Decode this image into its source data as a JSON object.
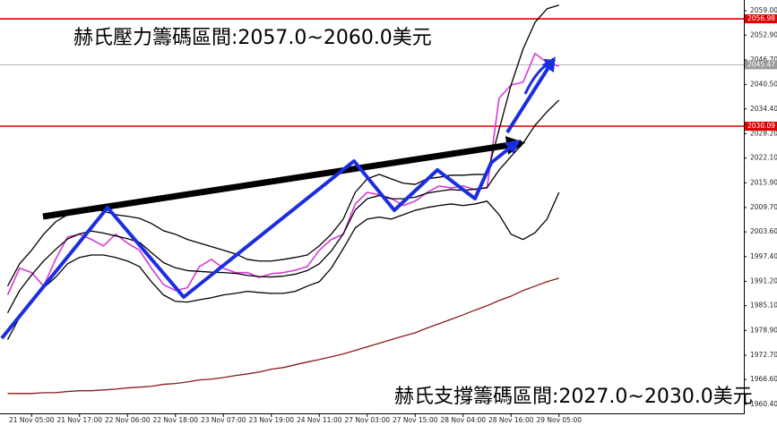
{
  "chart_data": {
    "type": "line",
    "annotations": [
      "赫氏壓力籌碼區間:2057.0~2060.0美元",
      "赫氏支撐籌碼區間:2027.0~2030.0美元"
    ],
    "categories": [
      null,
      null,
      "21 Nov 05:00",
      null,
      null,
      null,
      "21 Nov 17:00",
      null,
      null,
      null,
      "22 Nov 06:00",
      null,
      null,
      null,
      "22 Nov 18:00",
      null,
      null,
      null,
      "23 Nov 07:00",
      null,
      null,
      null,
      "23 Nov 19:00",
      null,
      null,
      null,
      "24 Nov 11:00",
      null,
      null,
      null,
      "27 Nov 03:00",
      null,
      null,
      null,
      "27 Nov 15:00",
      null,
      null,
      null,
      "28 Nov 04:00",
      null,
      null,
      null,
      "28 Nov 16:00",
      null,
      null,
      null,
      "29 Nov 05:00"
    ],
    "series": [
      {
        "color": "#d63ad6",
        "values": [
          1987.8,
          1994.5,
          1993.4,
          1990.0,
          1996.7,
          2002.3,
          2003.0,
          2001.7,
          2000.1,
          2003.0,
          2000.8,
          1999.0,
          1994.5,
          1990.4,
          1988.9,
          1989.6,
          1994.9,
          1996.7,
          1994.5,
          1993.4,
          1993.4,
          1992.2,
          1993.1,
          1993.4,
          1994.0,
          1994.9,
          1999.0,
          2001.7,
          2003.0,
          2010.6,
          2013.5,
          2012.9,
          2012.0,
          2010.2,
          2011.3,
          2013.5,
          2015.1,
          2014.6,
          2015.1,
          2014.2,
          2014.6,
          2037.1,
          2040.4,
          2041.1,
          2048.3,
          2046.0,
          2045.1
        ]
      },
      {
        "color": "#000000",
        "values": [
          1990.0,
          1995.6,
          1999.0,
          2003.0,
          2006.1,
          2007.9,
          2009.0,
          2009.7,
          2008.8,
          2007.9,
          2007.5,
          2007.0,
          2005.7,
          2003.9,
          2003.0,
          2001.7,
          2000.8,
          1999.9,
          1999.0,
          1998.1,
          1996.7,
          1996.3,
          1996.3,
          1996.7,
          1997.2,
          1997.8,
          2000.1,
          2003.0,
          2006.8,
          2013.5,
          2016.9,
          2018.0,
          2016.9,
          2015.8,
          2015.5,
          2016.9,
          2017.3,
          2017.8,
          2017.8,
          2018.0,
          2018.0,
          2029.2,
          2040.4,
          2049.4,
          2056.1,
          2059.5,
          2060.4
        ]
      },
      {
        "color": "#000000",
        "values": [
          1976.6,
          1982.2,
          1986.6,
          1989.6,
          1992.2,
          1995.6,
          1997.2,
          1997.8,
          1997.8,
          1997.2,
          1996.3,
          1994.9,
          1991.1,
          1987.8,
          1986.2,
          1986.0,
          1986.6,
          1987.1,
          1987.8,
          1988.2,
          1988.7,
          1988.4,
          1988.2,
          1988.2,
          1988.7,
          1990.0,
          1991.1,
          1994.5,
          1999.4,
          2004.6,
          2006.8,
          2007.3,
          2006.8,
          2007.9,
          2009.0,
          2009.7,
          2010.2,
          2010.6,
          2010.2,
          2010.6,
          2011.3,
          2007.9,
          2003.0,
          2001.7,
          2003.4,
          2006.8,
          2013.5
        ]
      },
      {
        "color": "#000000",
        "values": [
          1983.3,
          1988.9,
          1992.8,
          1996.3,
          1999.2,
          2001.8,
          2003.1,
          2003.8,
          2003.3,
          2002.6,
          2001.9,
          2001.0,
          1998.4,
          1995.9,
          1994.6,
          1993.9,
          1993.7,
          1993.5,
          1993.4,
          1993.2,
          1992.7,
          1992.4,
          1992.3,
          1992.5,
          1993.0,
          1993.9,
          1995.6,
          1998.8,
          2003.1,
          2009.1,
          2011.9,
          2012.7,
          2011.9,
          2011.9,
          2012.3,
          2013.3,
          2013.8,
          2014.2,
          2014.0,
          2014.3,
          2014.7,
          2019.1,
          2022.5,
          2025.8,
          2030.3,
          2033.7,
          2036.6
        ]
      },
      {
        "color": "#8b1a1a",
        "values": [
          1963.1,
          1963.1,
          1963.1,
          1963.3,
          1963.3,
          1963.6,
          1963.8,
          1963.8,
          1964.0,
          1964.2,
          1964.5,
          1964.7,
          1964.9,
          1965.4,
          1965.6,
          1966.0,
          1966.5,
          1966.7,
          1967.1,
          1967.6,
          1968.0,
          1968.5,
          1969.2,
          1969.6,
          1970.3,
          1971.0,
          1971.6,
          1972.3,
          1973.0,
          1973.9,
          1974.8,
          1975.7,
          1976.6,
          1977.5,
          1978.3,
          1979.5,
          1980.6,
          1981.7,
          1982.8,
          1984.0,
          1985.1,
          1986.4,
          1987.5,
          1988.9,
          1990.0,
          1991.1,
          1992.0
        ]
      }
    ],
    "levels": [
      {
        "value": 2056.98,
        "color": "#e00000"
      },
      {
        "value": 2030.09,
        "color": "#e00000"
      }
    ],
    "current_price": {
      "value": 2045.47,
      "color": "#9a9a9a"
    },
    "ylim": [
      1957.9,
      2061.7
    ],
    "yticks": [
      {
        "value": 2059.0,
        "label": "2059.00"
      },
      {
        "value": 2052.9,
        "label": "2052.90"
      },
      {
        "value": 2046.7,
        "label": "2046.70"
      },
      {
        "value": 2040.5,
        "label": "2040.50"
      },
      {
        "value": 2034.4,
        "label": "2034.40"
      },
      {
        "value": 2028.2,
        "label": "2028.20"
      },
      {
        "value": 2022.1,
        "label": "2022.10"
      },
      {
        "value": 2015.9,
        "label": "2015.90"
      },
      {
        "value": 2009.7,
        "label": "2009.70"
      },
      {
        "value": 2003.6,
        "label": "2003.60"
      },
      {
        "value": 1997.4,
        "label": "1997.40"
      },
      {
        "value": 1991.2,
        "label": "1991.20"
      },
      {
        "value": 1985.1,
        "label": "1985.10"
      },
      {
        "value": 1978.9,
        "label": "1978.90"
      },
      {
        "value": 1972.7,
        "label": "1972.70"
      },
      {
        "value": 1966.6,
        "label": "1966.60"
      },
      {
        "value": 1960.4,
        "label": "1960.40"
      }
    ],
    "grid": false
  }
}
